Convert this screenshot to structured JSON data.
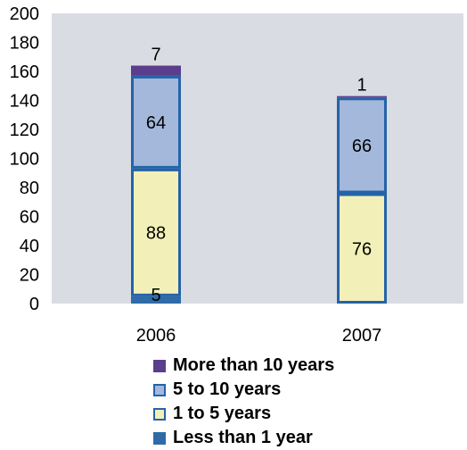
{
  "chart_data": {
    "type": "bar",
    "stacked": true,
    "categories": [
      "2006",
      "2007"
    ],
    "ylim": [
      0,
      200
    ],
    "yticks": [
      0,
      20,
      40,
      60,
      80,
      100,
      120,
      140,
      160,
      180,
      200
    ],
    "grid": false,
    "legend_position": "bottom",
    "series": [
      {
        "name": "Less than 1 year",
        "values": [
          5,
          0
        ],
        "color": "#2e6ba8",
        "fill_style": "solid"
      },
      {
        "name": "1 to 5 years",
        "values": [
          88,
          76
        ],
        "color": "#f2f0b8",
        "fill_style": "outlined"
      },
      {
        "name": "5 to 10 years",
        "values": [
          64,
          66
        ],
        "color": "#a3b8db",
        "fill_style": "outlined"
      },
      {
        "name": "More than 10 years",
        "values": [
          7,
          1
        ],
        "color": "#5a3d8c",
        "fill_style": "solid"
      }
    ],
    "data_labels": [
      [
        "5",
        ""
      ],
      [
        "88",
        "76"
      ],
      [
        "64",
        "66"
      ],
      [
        "7",
        "1"
      ]
    ],
    "colors": {
      "plot_background": "#d9dce2",
      "bar_outline": "#2563a8"
    }
  }
}
